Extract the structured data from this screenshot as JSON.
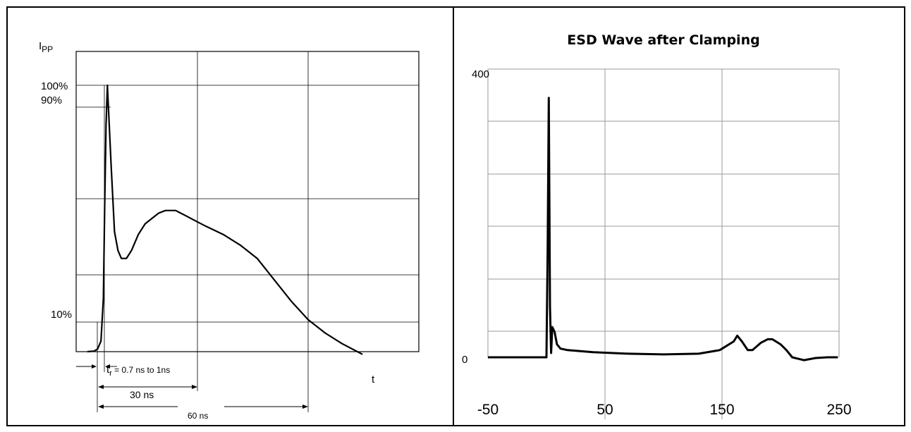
{
  "chart_data": [
    {
      "type": "line",
      "title": "",
      "ylabel_main": "I",
      "ylabel_sub": "PP",
      "xlabel": "t",
      "y_tick_labels": [
        "100%",
        "90%",
        "10%"
      ],
      "annotations": {
        "rise_time_prefix": "t",
        "rise_time_sub": "r",
        "rise_time_text": " = 0.7 ns to 1ns",
        "t30_text": "30 ns",
        "t60_text": "60 ns"
      },
      "series": [
        {
          "x": [
            -5,
            -3,
            -2,
            -1,
            -0.3,
            0.1,
            0.5,
            0.9,
            2,
            3,
            4,
            5,
            6.5,
            8,
            10,
            12,
            14,
            16,
            18,
            21,
            24,
            27,
            30,
            35,
            40,
            45,
            50,
            55,
            60,
            65,
            70,
            76
          ],
          "y": [
            0,
            0.2,
            1,
            4,
            20,
            55,
            85,
            100,
            70,
            45,
            38,
            35,
            35,
            38,
            44,
            48,
            50,
            52,
            53,
            53,
            51,
            49,
            47,
            44,
            40,
            35,
            27,
            19,
            12,
            7,
            3,
            -1
          ]
        }
      ]
    },
    {
      "type": "line",
      "title": "ESD Wave after Clamping",
      "xlabel": "",
      "ylabel": "",
      "xlim": [
        -50,
        250
      ],
      "ylim": [
        0,
        400
      ],
      "y_tick_labels": [
        "0",
        "400"
      ],
      "x_tick_labels": [
        "-50",
        "50",
        "150",
        "250"
      ],
      "grid": true,
      "series": [
        {
          "x": [
            -50,
            -5,
            0,
            1,
            2,
            3,
            4,
            5,
            7,
            9,
            12,
            18,
            40,
            70,
            100,
            130,
            148,
            160,
            163,
            167,
            172,
            176,
            183,
            189,
            193,
            200,
            205,
            210,
            220,
            230,
            240,
            249
          ],
          "y": [
            0,
            0,
            0,
            150,
            360,
            70,
            6,
            42,
            35,
            18,
            12,
            10,
            7,
            5,
            4,
            5,
            10,
            22,
            30,
            22,
            10,
            10,
            20,
            25,
            25,
            18,
            10,
            0,
            -4,
            -1,
            0,
            0
          ]
        }
      ]
    }
  ]
}
